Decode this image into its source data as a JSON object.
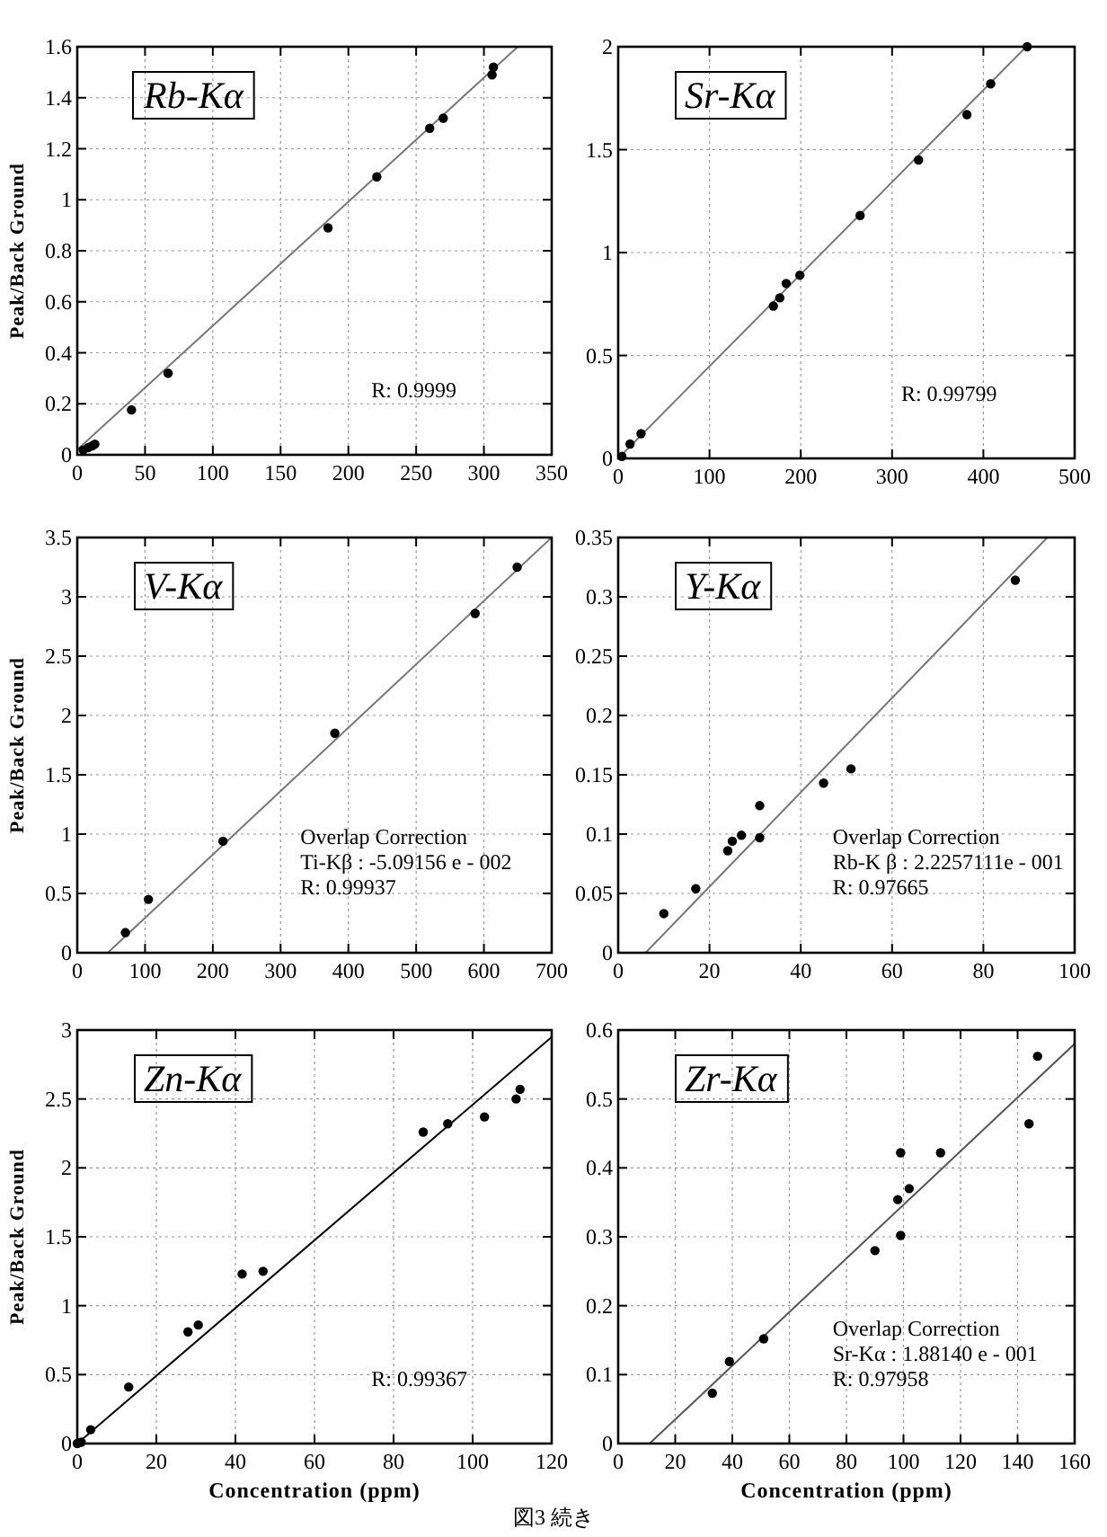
{
  "chart_data": [
    {
      "type": "scatter",
      "title": "Rb-Kα",
      "ylabel": "Peak/Back Ground",
      "xlim": [
        0,
        350
      ],
      "xticks": [
        0,
        50,
        100,
        150,
        200,
        250,
        300,
        350
      ],
      "ylim": [
        0,
        1.6
      ],
      "yticks": [
        0,
        0.2,
        0.4,
        0.6,
        0.8,
        1,
        1.2,
        1.4,
        1.6
      ],
      "grid": true,
      "annotations": [
        "R: 0.9999"
      ],
      "series": [
        {
          "type": "scatter",
          "marker": "circle",
          "color": "#000000",
          "x": [
            4.4,
            8,
            11,
            13,
            40,
            67,
            185,
            221,
            260,
            270,
            306,
            307
          ],
          "values": [
            0.019,
            0.028,
            0.035,
            0.042,
            0.176,
            0.32,
            0.89,
            1.09,
            1.28,
            1.32,
            1.49,
            1.52
          ]
        },
        {
          "type": "line",
          "color": "#777777",
          "x": [
            0,
            325
          ],
          "values": [
            0.02,
            1.6
          ]
        }
      ]
    },
    {
      "type": "scatter",
      "title": "Sr-Kα",
      "xlim": [
        0,
        500
      ],
      "xticks": [
        0,
        100,
        200,
        300,
        400,
        500
      ],
      "ylim": [
        0,
        2
      ],
      "yticks": [
        0,
        0.5,
        1,
        1.5,
        2
      ],
      "grid": true,
      "annotations": [
        "R: 0.99799"
      ],
      "series": [
        {
          "type": "scatter",
          "marker": "circle",
          "color": "#000000",
          "x": [
            4,
            13,
            25,
            170,
            177,
            184,
            199,
            265,
            329,
            382,
            408,
            448
          ],
          "values": [
            0.01,
            0.07,
            0.12,
            0.74,
            0.78,
            0.85,
            0.89,
            1.18,
            1.45,
            1.67,
            1.82,
            2.0
          ]
        },
        {
          "type": "line",
          "color": "#777777",
          "x": [
            0,
            447
          ],
          "values": [
            0,
            2
          ]
        }
      ]
    },
    {
      "type": "scatter",
      "title": "V-Kα",
      "ylabel": "Peak/Back Ground",
      "xlim": [
        0,
        700
      ],
      "xticks": [
        0,
        100,
        200,
        300,
        400,
        500,
        600,
        700
      ],
      "ylim": [
        0,
        3.5
      ],
      "yticks": [
        0,
        0.5,
        1,
        1.5,
        2,
        2.5,
        3,
        3.5
      ],
      "grid": true,
      "annotations": [
        "Overlap Correction",
        "Ti-Kβ : -5.09156 e - 002",
        "R: 0.99937"
      ],
      "series": [
        {
          "type": "scatter",
          "marker": "circle",
          "color": "#000000",
          "x": [
            71,
            105,
            215,
            380,
            587,
            649
          ],
          "values": [
            0.17,
            0.45,
            0.94,
            1.85,
            2.86,
            3.25
          ]
        },
        {
          "type": "line",
          "color": "#777777",
          "x": [
            45,
            700
          ],
          "values": [
            0,
            3.5
          ]
        }
      ]
    },
    {
      "type": "scatter",
      "title": "Y-Kα",
      "xlim": [
        0,
        100
      ],
      "xticks": [
        0,
        20,
        40,
        60,
        80,
        100
      ],
      "ylim": [
        0,
        0.35
      ],
      "yticks": [
        0,
        0.05,
        0.1,
        0.15,
        0.2,
        0.25,
        0.3,
        0.35
      ],
      "grid": true,
      "annotations": [
        "Overlap Correction",
        "Rb-K β : 2.2257111e - 001",
        "R: 0.97665"
      ],
      "series": [
        {
          "type": "scatter",
          "marker": "circle",
          "color": "#000000",
          "x": [
            10,
            17,
            24,
            25,
            27,
            31,
            31,
            45,
            51,
            87
          ],
          "values": [
            0.033,
            0.054,
            0.086,
            0.094,
            0.099,
            0.124,
            0.097,
            0.143,
            0.155,
            0.314
          ]
        },
        {
          "type": "line",
          "color": "#777777",
          "x": [
            6,
            94
          ],
          "values": [
            0,
            0.35
          ]
        }
      ]
    },
    {
      "type": "scatter",
      "title": "Zn-Kα",
      "ylabel": "Peak/Back Ground",
      "xlabel": "Concentration (ppm)",
      "xlim": [
        0,
        120
      ],
      "xticks": [
        0,
        20,
        40,
        60,
        80,
        100,
        120
      ],
      "ylim": [
        0,
        3
      ],
      "yticks": [
        0,
        0.5,
        1,
        1.5,
        2,
        2.5,
        3
      ],
      "grid": true,
      "annotations": [
        "R: 0.99367"
      ],
      "series": [
        {
          "type": "scatter",
          "marker": "circle",
          "color": "#000000",
          "x": [
            0,
            1,
            3.4,
            13,
            28,
            30.6,
            41.7,
            47,
            87.5,
            93.7,
            103,
            111,
            112
          ],
          "values": [
            0,
            0.01,
            0.1,
            0.41,
            0.81,
            0.86,
            1.23,
            1.25,
            2.26,
            2.32,
            2.37,
            2.5,
            2.57
          ]
        },
        {
          "type": "line",
          "color": "#000000",
          "x": [
            0,
            120
          ],
          "values": [
            0,
            2.95
          ]
        }
      ]
    },
    {
      "type": "scatter",
      "title": "Zr-Kα",
      "xlabel": "Concentration (ppm)",
      "xlim": [
        0,
        160
      ],
      "xticks": [
        0,
        20,
        40,
        60,
        80,
        100,
        120,
        140,
        160
      ],
      "ylim": [
        0,
        0.6
      ],
      "yticks": [
        0,
        0.1,
        0.2,
        0.3,
        0.4,
        0.5,
        0.6
      ],
      "grid": true,
      "annotations": [
        "Overlap Correction",
        "Sr-Kα : 1.88140 e - 001",
        "R: 0.97958"
      ],
      "series": [
        {
          "type": "scatter",
          "marker": "circle",
          "color": "#000000",
          "x": [
            33,
            39,
            51,
            90,
            98,
            99,
            99,
            102,
            113,
            144,
            147
          ],
          "values": [
            0.073,
            0.119,
            0.152,
            0.28,
            0.354,
            0.302,
            0.422,
            0.37,
            0.422,
            0.464,
            0.562
          ]
        },
        {
          "type": "line",
          "color": "#555555",
          "x": [
            11,
            160
          ],
          "values": [
            0,
            0.58
          ]
        }
      ]
    },
    {
      "type": "other",
      "title": "図3 続き"
    }
  ]
}
